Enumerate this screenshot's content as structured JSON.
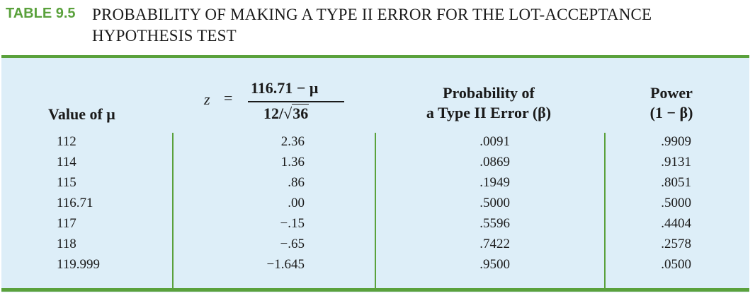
{
  "table": {
    "number": "TABLE 9.5",
    "title_line1": "PROBABILITY OF MAKING A TYPE II ERROR FOR THE LOT-ACCEPTANCE",
    "title_line2": "HYPOTHESIS TEST"
  },
  "headers": {
    "col1": "Value of μ",
    "col2_lhs": "z",
    "col2_eq": "=",
    "col2_num": "116.71 − μ",
    "col2_den_a": "12/",
    "col2_den_root": "√",
    "col2_den_b": "36",
    "col3_line1": "Probability of",
    "col3_line2": "a Type II Error (β)",
    "col4_line1": "Power",
    "col4_line2": "(1 − β)"
  },
  "rows": [
    {
      "mu": "112",
      "z": "2.36",
      "beta": ".0091",
      "power": ".9909"
    },
    {
      "mu": "114",
      "z": "1.36",
      "beta": ".0869",
      "power": ".9131"
    },
    {
      "mu": "115",
      "z": ".86",
      "beta": ".1949",
      "power": ".8051"
    },
    {
      "mu": "116.71",
      "z": ".00",
      "beta": ".5000",
      "power": ".5000"
    },
    {
      "mu": "117",
      "z": "−.15",
      "beta": ".5596",
      "power": ".4404"
    },
    {
      "mu": "118",
      "z": "−.65",
      "beta": ".7422",
      "power": ".2578"
    },
    {
      "mu": "119.999",
      "z": "−1.645",
      "beta": ".9500",
      "power": ".0500"
    }
  ],
  "colors": {
    "accent": "#5aa13c",
    "panel": "#ddeef8"
  }
}
